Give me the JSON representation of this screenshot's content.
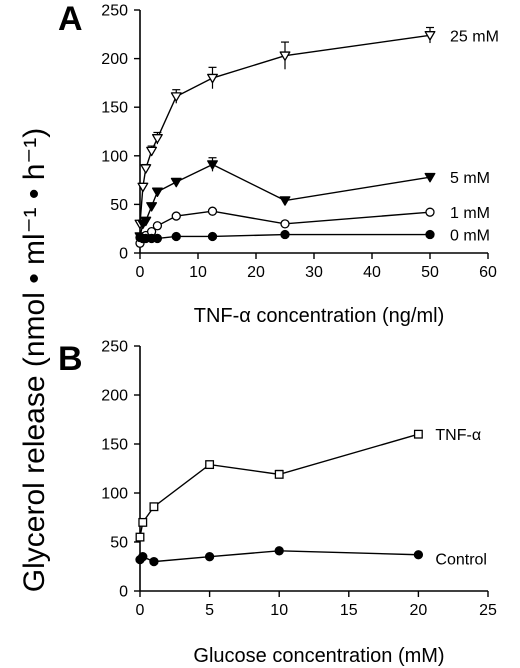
{
  "figure": {
    "ylabel": "Glycerol release (nmol • ml⁻¹ • h⁻¹)"
  },
  "chart_data": [
    {
      "panel": "A",
      "type": "line",
      "xlabel": "TNF-α concentration (ng/ml)",
      "xlim": [
        0,
        60
      ],
      "ylim": [
        0,
        250
      ],
      "xticks": [
        0,
        10,
        20,
        30,
        40,
        50,
        60
      ],
      "yticks": [
        0,
        50,
        100,
        150,
        200,
        250
      ],
      "series": [
        {
          "name": "25 mM",
          "marker": "triangle-down-open",
          "x": [
            0,
            0.5,
            1,
            2,
            3,
            6.25,
            12.5,
            25,
            50
          ],
          "y": [
            30,
            68,
            87,
            105,
            118,
            161,
            180,
            203,
            224
          ],
          "err": [
            0,
            0,
            4,
            5,
            6,
            7,
            11,
            14,
            8
          ]
        },
        {
          "name": "5 mM",
          "marker": "triangle-down-filled",
          "x": [
            0,
            0.5,
            1,
            2,
            3,
            6.25,
            12.5,
            25,
            50
          ],
          "y": [
            17,
            30,
            33,
            48,
            63,
            73,
            91,
            54,
            78
          ],
          "err": [
            0,
            0,
            0,
            3,
            3,
            3,
            7,
            3,
            3
          ]
        },
        {
          "name": "1 mM",
          "marker": "circle-open",
          "x": [
            0,
            0.5,
            1,
            2,
            3,
            6.25,
            12.5,
            25,
            50
          ],
          "y": [
            10,
            15,
            18,
            22,
            28,
            38,
            43,
            30,
            42
          ],
          "err": [
            0,
            0,
            0,
            0,
            0,
            0,
            0,
            0,
            0
          ]
        },
        {
          "name": "0 mM",
          "marker": "circle-filled",
          "x": [
            0,
            0.5,
            1,
            2,
            3,
            6.25,
            12.5,
            25,
            50
          ],
          "y": [
            16,
            15,
            15,
            15,
            15,
            17,
            17,
            19,
            19
          ],
          "err": [
            0,
            0,
            0,
            0,
            0,
            0,
            0,
            0,
            0
          ]
        }
      ]
    },
    {
      "panel": "B",
      "type": "line",
      "xlabel": "Glucose concentration (mM)",
      "xlim": [
        0,
        25
      ],
      "ylim": [
        0,
        250
      ],
      "xticks": [
        0,
        5,
        10,
        15,
        20,
        25
      ],
      "yticks": [
        0,
        50,
        100,
        150,
        200,
        250
      ],
      "series": [
        {
          "name": "TNF-α",
          "marker": "square-open",
          "x": [
            0,
            0.2,
            1,
            5,
            10,
            20
          ],
          "y": [
            55,
            70,
            86,
            129,
            119,
            160
          ],
          "err": [
            0,
            0,
            0,
            3,
            4,
            3
          ]
        },
        {
          "name": "Control",
          "marker": "circle-filled",
          "x": [
            0,
            0.2,
            1,
            5,
            10,
            20
          ],
          "y": [
            32,
            35,
            30,
            35,
            41,
            37
          ],
          "err": [
            0,
            0,
            0,
            0,
            0,
            0
          ]
        }
      ]
    }
  ]
}
